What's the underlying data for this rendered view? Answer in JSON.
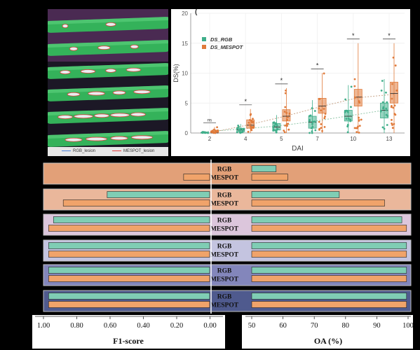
{
  "image_legend": [
    {
      "label": "RGB_lesion",
      "color": "#4a7fd8"
    },
    {
      "label": "MESPOT_lesion",
      "color": "#e23b3b"
    }
  ],
  "chart_data": [
    {
      "type": "box",
      "panel_label": "(",
      "xlabel": "DAI",
      "ylabel": "DS(%)",
      "ylim": [
        0,
        20
      ],
      "yticks": [
        0,
        5,
        10,
        15,
        20
      ],
      "categories": [
        "2",
        "4",
        "5",
        "7",
        "10",
        "13"
      ],
      "legend": {
        "placement": "top-left"
      },
      "series": [
        {
          "name": "DS_RGB",
          "color": "#3fae8a",
          "medians": [
            0.0,
            0.5,
            1.0,
            1.8,
            2.8,
            3.8
          ],
          "q1": [
            0.0,
            0.2,
            0.5,
            0.8,
            2.0,
            2.5
          ],
          "q3": [
            0.1,
            0.8,
            1.6,
            2.8,
            3.8,
            5.0
          ],
          "whisker_low": [
            0.0,
            0.0,
            0.0,
            0.0,
            0.0,
            0.0
          ],
          "whisker_high": [
            0.3,
            1.5,
            3.0,
            5.5,
            8.0,
            9.0
          ]
        },
        {
          "name": "DS_MESPOT",
          "color": "#e07a3a",
          "medians": [
            0.0,
            1.3,
            2.8,
            4.5,
            6.0,
            6.6
          ],
          "q1": [
            0.0,
            0.8,
            2.0,
            3.3,
            4.5,
            5.0
          ],
          "q3": [
            0.2,
            2.2,
            3.9,
            5.8,
            7.3,
            8.5
          ],
          "whisker_low": [
            0.0,
            0.0,
            0.0,
            0.0,
            0.0,
            0.0
          ],
          "whisker_high": [
            1.0,
            4.0,
            7.5,
            10.0,
            15.0,
            15.0
          ]
        }
      ],
      "significance": [
        "ns",
        "*",
        "*",
        "*",
        "*",
        "*"
      ],
      "trend_lines": true
    },
    {
      "type": "bar",
      "orientation": "horizontal",
      "series": [
        {
          "name": "RGB",
          "color": "#7fcdb4"
        },
        {
          "name": "MESPOT",
          "color": "#f0a36a"
        }
      ],
      "groups": [
        {
          "bg": "#e2a078",
          "f1": {
            "RGB": 0.0,
            "MESPOT": 0.16
          },
          "oa": {
            "RGB": 57.8,
            "MESPOT": 61.5
          }
        },
        {
          "bg": "#eab79b",
          "f1": {
            "RGB": 0.63,
            "MESPOT": 0.9
          },
          "oa": {
            "RGB": 78.0,
            "MESPOT": 92.5
          }
        },
        {
          "bg": "#dcc6dc",
          "f1": {
            "RGB": 0.96,
            "MESPOT": 0.99
          },
          "oa": {
            "RGB": 98.0,
            "MESPOT": 99.5
          }
        },
        {
          "bg": "#c4c4e0",
          "f1": {
            "RGB": 0.99,
            "MESPOT": 0.99
          },
          "oa": {
            "RGB": 99.5,
            "MESPOT": 99.5
          }
        },
        {
          "bg": "#8386bb",
          "f1": {
            "RGB": 0.99,
            "MESPOT": 0.99
          },
          "oa": {
            "RGB": 99.5,
            "MESPOT": 99.5
          }
        },
        {
          "bg": "#4f5a8e",
          "f1": {
            "RGB": 0.99,
            "MESPOT": 0.99
          },
          "oa": {
            "RGB": 99.5,
            "MESPOT": 99.5
          }
        }
      ],
      "f1_axis": {
        "title": "F1-score",
        "ticks": [
          "1.00",
          "0.80",
          "0.60",
          "0.40",
          "0.20",
          "0.00"
        ],
        "range": [
          1.0,
          0.0
        ]
      },
      "oa_axis": {
        "title": "OA (%)",
        "ticks": [
          "50",
          "60",
          "70",
          "80",
          "90",
          "100"
        ],
        "range": [
          50,
          100
        ]
      }
    }
  ]
}
